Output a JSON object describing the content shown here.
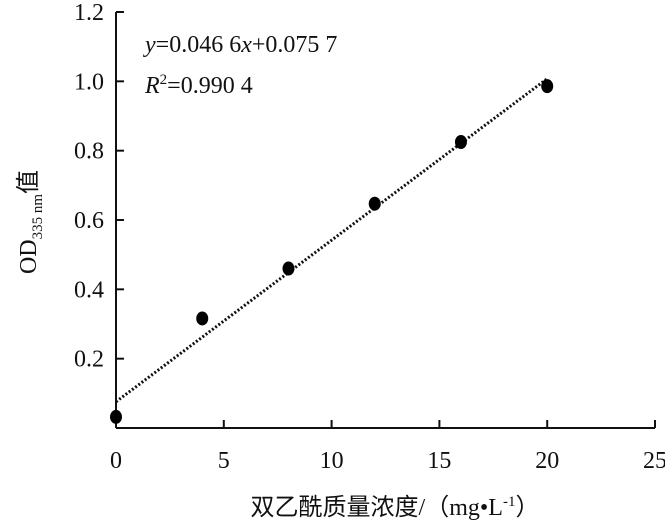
{
  "chart_data": {
    "type": "scatter",
    "x": [
      0,
      4,
      8,
      12,
      16,
      20
    ],
    "values": [
      0.032,
      0.316,
      0.46,
      0.647,
      0.825,
      0.986
    ],
    "color": "#000000",
    "trendline": {
      "x": [
        0,
        20
      ],
      "values": [
        0.0757,
        1.0077
      ]
    },
    "equation_parts": [
      "y",
      "=0.046 6",
      "x",
      "+0.075 7"
    ],
    "r2_parts": [
      "R",
      "2",
      "=0.990 4"
    ],
    "y_label_parts": [
      "OD",
      "335 nm",
      "值"
    ],
    "x_label_parts": [
      "双乙酰质量浓度/（mg•L",
      "-1",
      "）"
    ],
    "xlim": [
      0,
      25
    ],
    "xticks": [
      0,
      5,
      10,
      15,
      20,
      25
    ],
    "ylim": [
      0,
      1.2
    ],
    "yticks": [
      0.2,
      0.4,
      0.6,
      0.8,
      {
        "value": 1,
        "label": "1.0"
      },
      1.2
    ]
  }
}
